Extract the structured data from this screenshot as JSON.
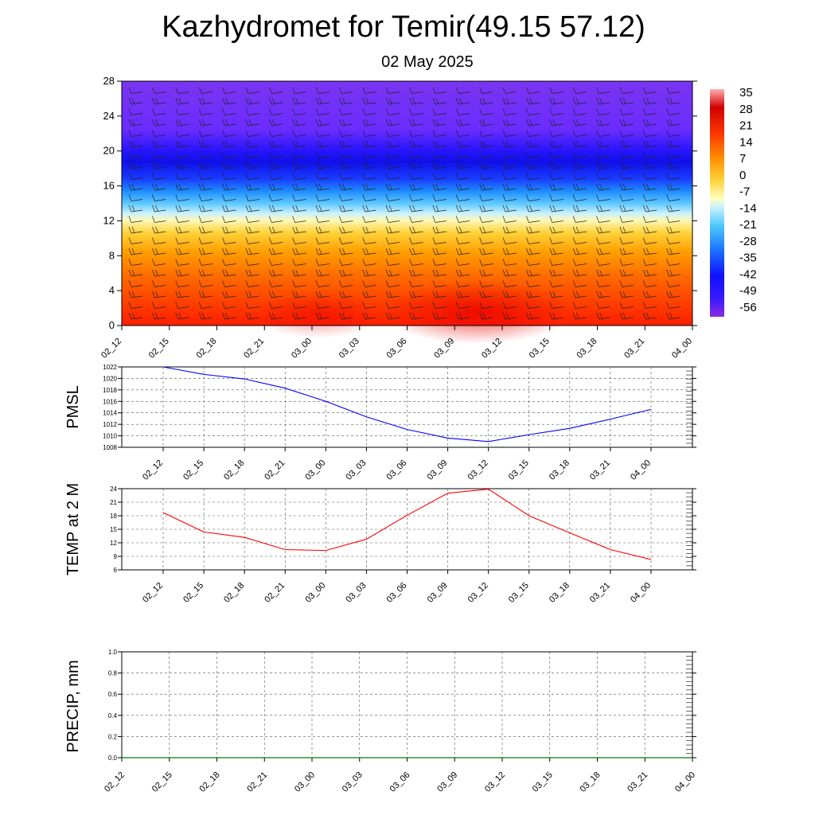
{
  "page": {
    "title": "Kazhydromet for Temir(49.15 57.12)",
    "date": "02 May 2025"
  },
  "chart_data": [
    {
      "type": "heatmap",
      "name": "temperature-height-section",
      "x_tick_labels": [
        "02_12",
        "02_15",
        "02_18",
        "02_21",
        "03_00",
        "03_03",
        "03_06",
        "03_09",
        "03_12",
        "03_15",
        "03_18",
        "03_21",
        "04_00"
      ],
      "y_ticks": [
        0,
        4,
        8,
        12,
        16,
        20,
        24,
        28
      ],
      "ylim": [
        0,
        28
      ],
      "colorbar_labels": [
        "35",
        "28",
        "21",
        "14",
        "7",
        "0",
        "-7",
        "-14",
        "-21",
        "-28",
        "-35",
        "-42",
        "-49",
        "-56"
      ],
      "colorbar_range": [
        -63,
        42
      ],
      "level_temperature_profile": [
        {
          "level": 0,
          "value": 24
        },
        {
          "level": 4,
          "value": 19
        },
        {
          "level": 8,
          "value": 10
        },
        {
          "level": 12,
          "value": -10
        },
        {
          "level": 14,
          "value": -30
        },
        {
          "level": 16,
          "value": -48
        },
        {
          "level": 19,
          "value": -58
        },
        {
          "level": 22,
          "value": -56
        },
        {
          "level": 28,
          "value": -55
        }
      ],
      "wind_barbs": true,
      "colors": {
        "warm": "#ff2400",
        "neutral": "#ffffc0",
        "cold": "#1a1aff",
        "coldest": "#8a2be2"
      }
    },
    {
      "type": "line",
      "ylabel": "PMSL",
      "categories": [
        "02_12",
        "02_15",
        "02_18",
        "02_21",
        "03_00",
        "03_03",
        "03_06",
        "03_09",
        "03_12",
        "03_15",
        "03_18",
        "03_21",
        "04_00"
      ],
      "values": [
        1022,
        1020.7,
        1019.9,
        1018.3,
        1016,
        1013.3,
        1011.1,
        1009.6,
        1009,
        1010.2,
        1011.3,
        1012.9,
        1014.6
      ],
      "ylim": [
        1008,
        1022
      ],
      "y_ticks": [
        1008,
        1010,
        1012,
        1014,
        1016,
        1018,
        1020,
        1022
      ],
      "color": "#0000ff"
    },
    {
      "type": "line",
      "ylabel": "TEMP at 2 M",
      "categories": [
        "02_12",
        "02_15",
        "02_18",
        "02_21",
        "03_00",
        "03_03",
        "03_06",
        "03_09",
        "03_12",
        "03_15",
        "03_18",
        "03_21",
        "04_00"
      ],
      "values": [
        18.7,
        14.4,
        13.2,
        10.5,
        10.3,
        12.8,
        18.1,
        23,
        23.9,
        18,
        14.2,
        10.5,
        8.3
      ],
      "ylim": [
        6,
        24
      ],
      "y_ticks": [
        6,
        9,
        12,
        15,
        18,
        21,
        24
      ],
      "color": "#ff0000"
    },
    {
      "type": "line",
      "ylabel": "PRECIP, mm",
      "categories": [
        "02_12",
        "02_15",
        "02_18",
        "02_21",
        "03_00",
        "03_03",
        "03_06",
        "03_09",
        "03_12",
        "03_15",
        "03_18",
        "03_21",
        "04_00"
      ],
      "values": [
        0,
        0,
        0,
        0,
        0,
        0,
        0,
        0,
        0,
        0,
        0,
        0,
        0
      ],
      "ylim": [
        0,
        1
      ],
      "y_ticks": [
        "0.0",
        "0.2",
        "0.4",
        "0.6",
        "0.8",
        "1.0"
      ],
      "color": "#007a00"
    }
  ]
}
